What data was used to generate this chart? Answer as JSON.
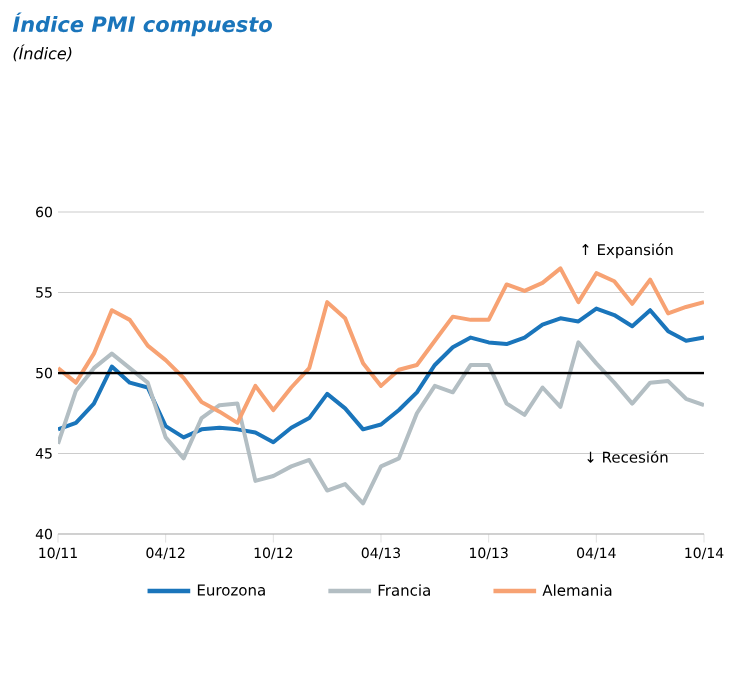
{
  "chart_data": {
    "type": "line",
    "title": "Índice PMI compuesto",
    "subtitle": "(Índice)",
    "x": [
      "2011-10",
      "2011-11",
      "2011-12",
      "2012-01",
      "2012-02",
      "2012-03",
      "2012-04",
      "2012-05",
      "2012-06",
      "2012-07",
      "2012-08",
      "2012-09",
      "2012-10",
      "2012-11",
      "2012-12",
      "2013-01",
      "2013-02",
      "2013-03",
      "2013-04",
      "2013-05",
      "2013-06",
      "2013-07",
      "2013-08",
      "2013-09",
      "2013-10",
      "2013-11",
      "2013-12",
      "2014-01",
      "2014-02",
      "2014-03",
      "2014-04",
      "2014-05",
      "2014-06",
      "2014-07",
      "2014-08",
      "2014-09",
      "2014-10"
    ],
    "series": [
      {
        "name": "Eurozona",
        "color": "#1a75bb",
        "values": [
          46.5,
          46.9,
          48.1,
          50.4,
          49.4,
          49.1,
          46.7,
          46.0,
          46.5,
          46.6,
          46.5,
          46.3,
          45.7,
          46.6,
          47.2,
          48.7,
          47.8,
          46.5,
          46.8,
          47.7,
          48.8,
          50.5,
          51.6,
          52.2,
          51.9,
          51.8,
          52.2,
          53.0,
          53.4,
          53.2,
          54.0,
          53.6,
          52.9,
          53.9,
          52.6,
          52.0,
          52.2
        ]
      },
      {
        "name": "Francia",
        "color": "#b3bec3",
        "values": [
          45.6,
          48.9,
          50.3,
          51.2,
          50.3,
          49.4,
          46.0,
          44.7,
          47.2,
          48.0,
          48.1,
          43.3,
          43.6,
          44.2,
          44.6,
          42.7,
          43.1,
          41.9,
          44.2,
          44.7,
          47.5,
          49.2,
          48.8,
          50.5,
          50.5,
          48.1,
          47.4,
          49.1,
          47.9,
          51.9,
          50.6,
          49.4,
          48.1,
          49.4,
          49.5,
          48.4,
          48.0
        ]
      },
      {
        "name": "Alemania",
        "color": "#f7a273",
        "values": [
          50.3,
          49.4,
          51.2,
          53.9,
          53.3,
          51.7,
          50.8,
          49.7,
          48.2,
          47.6,
          46.9,
          49.2,
          47.7,
          49.1,
          50.3,
          54.4,
          53.4,
          50.6,
          49.2,
          50.2,
          50.5,
          52.0,
          53.5,
          53.3,
          53.3,
          55.5,
          55.1,
          55.6,
          56.5,
          54.4,
          56.2,
          55.7,
          54.3,
          55.8,
          53.7,
          54.1,
          54.4
        ]
      }
    ],
    "xlim": [
      "2011-10",
      "2014-10"
    ],
    "xticks": [
      {
        "value": "2011-10",
        "label": "10/11"
      },
      {
        "value": "2012-04",
        "label": "04/12"
      },
      {
        "value": "2012-10",
        "label": "10/12"
      },
      {
        "value": "2013-04",
        "label": "04/13"
      },
      {
        "value": "2013-10",
        "label": "10/13"
      },
      {
        "value": "2014-04",
        "label": "04/14"
      },
      {
        "value": "2014-10",
        "label": "10/14"
      }
    ],
    "ylim": [
      40,
      60
    ],
    "yticks": [
      40,
      45,
      50,
      55,
      60
    ],
    "ref_lines": [
      {
        "axis": "y",
        "value": 50,
        "color": "#000000"
      }
    ],
    "annotations": [
      "↑ Expansión",
      "↓ Recesión"
    ],
    "grid": "y",
    "legend": "bottom",
    "line_style": "solid",
    "marker": "none"
  }
}
